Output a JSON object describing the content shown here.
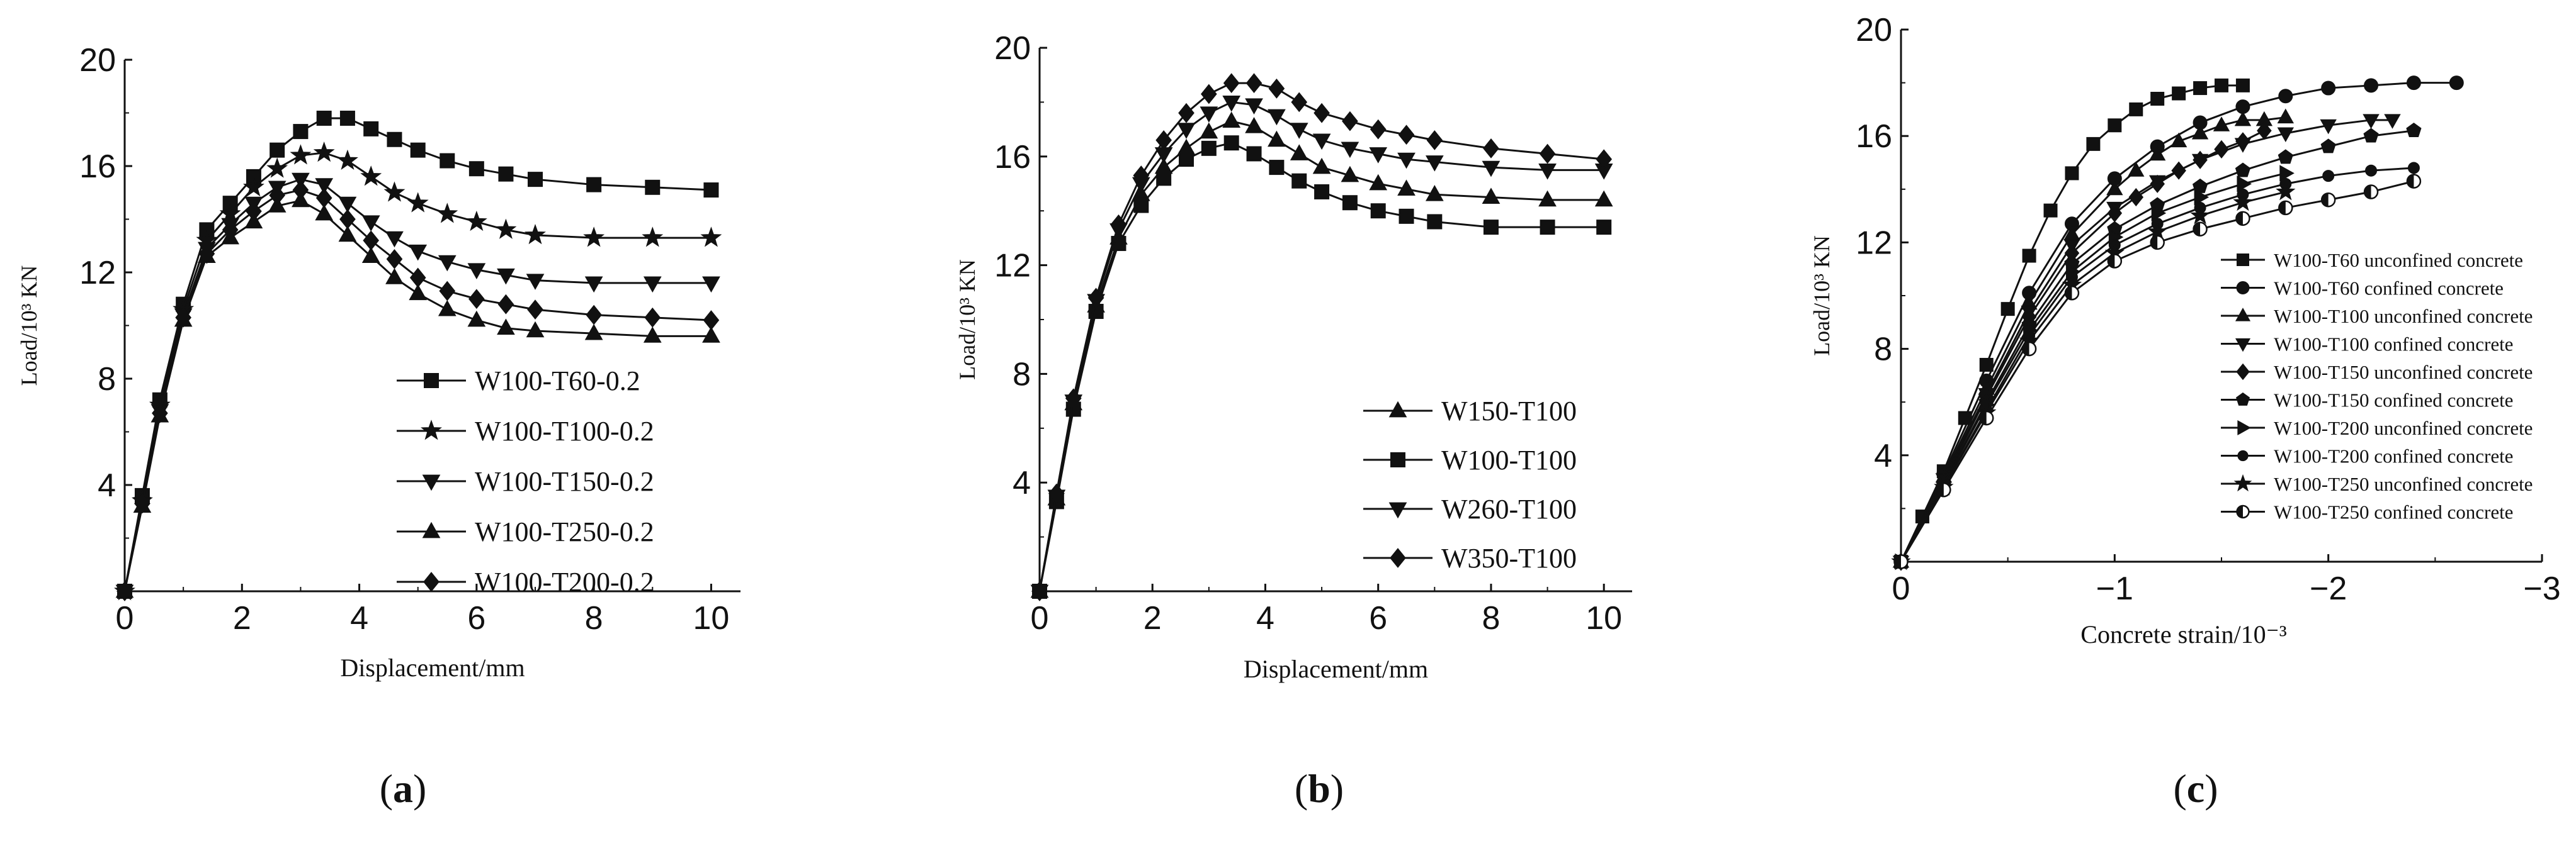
{
  "chart_data": [
    {
      "type": "line",
      "panel_label": "a",
      "xlabel": "Displacement/mm",
      "ylabel": "Load/10³ KN",
      "xlim": [
        0,
        10.5
      ],
      "ylim": [
        0,
        20
      ],
      "xticks": [
        0,
        2,
        4,
        6,
        8,
        10
      ],
      "yticks": [
        4,
        8,
        12,
        16,
        20
      ],
      "grid": false,
      "legend_position": "lower-right",
      "series": [
        {
          "name": "W100-T60-0.2",
          "marker": "square",
          "x": [
            0,
            0.3,
            0.6,
            1.0,
            1.4,
            1.8,
            2.2,
            2.6,
            3.0,
            3.4,
            3.8,
            4.2,
            4.6,
            5.0,
            5.5,
            6.0,
            6.5,
            7.0,
            8.0,
            9.0,
            10.0
          ],
          "y": [
            0,
            3.6,
            7.2,
            10.8,
            13.6,
            14.6,
            15.6,
            16.6,
            17.3,
            17.8,
            17.8,
            17.4,
            17.0,
            16.6,
            16.2,
            15.9,
            15.7,
            15.5,
            15.3,
            15.2,
            15.1
          ]
        },
        {
          "name": "W100-T100-0.2",
          "marker": "star",
          "x": [
            0,
            0.3,
            0.6,
            1.0,
            1.4,
            1.8,
            2.2,
            2.6,
            3.0,
            3.4,
            3.8,
            4.2,
            4.6,
            5.0,
            5.5,
            6.0,
            6.5,
            7.0,
            8.0,
            9.0,
            10.0
          ],
          "y": [
            0,
            3.4,
            7.0,
            10.6,
            13.2,
            14.2,
            15.2,
            15.9,
            16.4,
            16.5,
            16.2,
            15.6,
            15.0,
            14.6,
            14.2,
            13.9,
            13.6,
            13.4,
            13.3,
            13.3,
            13.3
          ]
        },
        {
          "name": "W100-T150-0.2",
          "marker": "triangle-down",
          "x": [
            0,
            0.3,
            0.6,
            1.0,
            1.4,
            1.8,
            2.2,
            2.6,
            3.0,
            3.4,
            3.8,
            4.2,
            4.6,
            5.0,
            5.5,
            6.0,
            6.5,
            7.0,
            8.0,
            9.0,
            10.0
          ],
          "y": [
            0,
            3.3,
            6.8,
            10.4,
            12.9,
            13.8,
            14.6,
            15.2,
            15.5,
            15.3,
            14.6,
            13.9,
            13.3,
            12.8,
            12.4,
            12.1,
            11.9,
            11.7,
            11.6,
            11.6,
            11.6
          ]
        },
        {
          "name": "W100-T250-0.2",
          "marker": "triangle-up",
          "x": [
            0,
            0.3,
            0.6,
            1.0,
            1.4,
            1.8,
            2.2,
            2.6,
            3.0,
            3.4,
            3.8,
            4.2,
            4.6,
            5.0,
            5.5,
            6.0,
            6.5,
            7.0,
            8.0,
            9.0,
            10.0
          ],
          "y": [
            0,
            3.2,
            6.6,
            10.2,
            12.6,
            13.3,
            13.9,
            14.5,
            14.7,
            14.2,
            13.4,
            12.6,
            11.8,
            11.2,
            10.6,
            10.2,
            9.9,
            9.8,
            9.7,
            9.6,
            9.6
          ]
        },
        {
          "name": "W100-T200-0.2",
          "marker": "diamond",
          "x": [
            0,
            0.3,
            0.6,
            1.0,
            1.4,
            1.8,
            2.2,
            2.6,
            3.0,
            3.4,
            3.8,
            4.2,
            4.6,
            5.0,
            5.5,
            6.0,
            6.5,
            7.0,
            8.0,
            9.0,
            10.0
          ],
          "y": [
            0,
            3.3,
            6.7,
            10.3,
            12.7,
            13.6,
            14.3,
            14.9,
            15.1,
            14.8,
            14.0,
            13.2,
            12.5,
            11.8,
            11.3,
            11.0,
            10.8,
            10.6,
            10.4,
            10.3,
            10.2
          ]
        }
      ]
    },
    {
      "type": "line",
      "panel_label": "b",
      "xlabel": "Displacement/mm",
      "ylabel": "Load/10³ KN",
      "xlim": [
        0,
        10.5
      ],
      "ylim": [
        0,
        20
      ],
      "xticks": [
        0,
        2,
        4,
        6,
        8,
        10
      ],
      "yticks": [
        4,
        8,
        12,
        16,
        20
      ],
      "grid": false,
      "legend_position": "lower-right",
      "series": [
        {
          "name": "W150-T100",
          "marker": "triangle-up",
          "x": [
            0,
            0.3,
            0.6,
            1.0,
            1.4,
            1.8,
            2.2,
            2.6,
            3.0,
            3.4,
            3.8,
            4.2,
            4.6,
            5.0,
            5.5,
            6.0,
            6.5,
            7.0,
            8.0,
            9.0,
            10.0
          ],
          "y": [
            0,
            3.4,
            6.9,
            10.5,
            13.0,
            14.6,
            15.6,
            16.3,
            16.9,
            17.3,
            17.1,
            16.6,
            16.1,
            15.6,
            15.3,
            15.0,
            14.8,
            14.6,
            14.5,
            14.4,
            14.4
          ]
        },
        {
          "name": "W100-T100",
          "marker": "square",
          "x": [
            0,
            0.3,
            0.6,
            1.0,
            1.4,
            1.8,
            2.2,
            2.6,
            3.0,
            3.4,
            3.8,
            4.2,
            4.6,
            5.0,
            5.5,
            6.0,
            6.5,
            7.0,
            8.0,
            9.0,
            10.0
          ],
          "y": [
            0,
            3.3,
            6.7,
            10.3,
            12.8,
            14.2,
            15.2,
            15.9,
            16.3,
            16.5,
            16.1,
            15.6,
            15.1,
            14.7,
            14.3,
            14.0,
            13.8,
            13.6,
            13.4,
            13.4,
            13.4
          ]
        },
        {
          "name": "W260-T100",
          "marker": "triangle-down",
          "x": [
            0,
            0.3,
            0.6,
            1.0,
            1.4,
            1.8,
            2.2,
            2.6,
            3.0,
            3.4,
            3.8,
            4.2,
            4.6,
            5.0,
            5.5,
            6.0,
            6.5,
            7.0,
            8.0,
            9.0,
            10.0
          ],
          "y": [
            0,
            3.5,
            7.0,
            10.7,
            13.3,
            15.0,
            16.1,
            17.0,
            17.6,
            18.0,
            17.9,
            17.5,
            17.0,
            16.6,
            16.3,
            16.1,
            15.9,
            15.8,
            15.6,
            15.5,
            15.5
          ]
        },
        {
          "name": "W350-T100",
          "marker": "diamond",
          "x": [
            0,
            0.3,
            0.6,
            1.0,
            1.4,
            1.8,
            2.2,
            2.6,
            3.0,
            3.4,
            3.8,
            4.2,
            4.6,
            5.0,
            5.5,
            6.0,
            6.5,
            7.0,
            8.0,
            9.0,
            10.0
          ],
          "y": [
            0,
            3.6,
            7.1,
            10.8,
            13.5,
            15.3,
            16.6,
            17.6,
            18.3,
            18.7,
            18.7,
            18.5,
            18.0,
            17.6,
            17.3,
            17.0,
            16.8,
            16.6,
            16.3,
            16.1,
            15.9
          ]
        }
      ]
    },
    {
      "type": "line",
      "panel_label": "c",
      "xlabel": "Concrete strain/10⁻³",
      "ylabel": "Load/10³ KN",
      "xlim": [
        0,
        -3
      ],
      "ylim": [
        0,
        20
      ],
      "xticks": [
        0,
        -1,
        -2,
        -3
      ],
      "xtick_labels": [
        "0",
        "−1",
        "−2",
        "−3"
      ],
      "yticks": [
        4,
        8,
        12,
        16,
        20
      ],
      "grid": false,
      "legend_position": "right",
      "series": [
        {
          "name": "W100-T60 unconfined concrete",
          "marker": "square",
          "x": [
            0,
            -0.1,
            -0.2,
            -0.3,
            -0.4,
            -0.5,
            -0.6,
            -0.7,
            -0.8,
            -0.9,
            -1.0,
            -1.1,
            -1.2,
            -1.3,
            -1.4,
            -1.5,
            -1.6
          ],
          "y": [
            0,
            1.7,
            3.4,
            5.4,
            7.4,
            9.5,
            11.5,
            13.2,
            14.6,
            15.7,
            16.4,
            17.0,
            17.4,
            17.6,
            17.8,
            17.9,
            17.9
          ]
        },
        {
          "name": "W100-T60 confined concrete",
          "marker": "circle",
          "x": [
            0,
            -0.2,
            -0.4,
            -0.6,
            -0.8,
            -1.0,
            -1.2,
            -1.4,
            -1.6,
            -1.8,
            -2.0,
            -2.2,
            -2.4,
            -2.6
          ],
          "y": [
            0,
            3.3,
            6.8,
            10.1,
            12.7,
            14.4,
            15.6,
            16.5,
            17.1,
            17.5,
            17.8,
            17.9,
            18.0,
            18.0
          ]
        },
        {
          "name": "W100-T100 unconfined concrete",
          "marker": "triangle-up",
          "x": [
            0,
            -0.2,
            -0.4,
            -0.6,
            -0.8,
            -1.0,
            -1.1,
            -1.2,
            -1.3,
            -1.4,
            -1.5,
            -1.6,
            -1.7,
            -1.8
          ],
          "y": [
            0,
            3.2,
            6.5,
            9.7,
            12.3,
            14.0,
            14.7,
            15.3,
            15.8,
            16.1,
            16.4,
            16.6,
            16.6,
            16.7
          ]
        },
        {
          "name": "W100-T100 confined concrete",
          "marker": "triangle-down",
          "x": [
            0,
            -0.2,
            -0.4,
            -0.6,
            -0.8,
            -1.0,
            -1.2,
            -1.4,
            -1.6,
            -1.8,
            -2.0,
            -2.2,
            -2.3
          ],
          "y": [
            0,
            3.1,
            6.3,
            9.4,
            11.9,
            13.3,
            14.3,
            15.1,
            15.7,
            16.1,
            16.4,
            16.6,
            16.6
          ]
        },
        {
          "name": "W100-T150 unconfined concrete",
          "marker": "diamond",
          "x": [
            0,
            -0.2,
            -0.4,
            -0.6,
            -0.8,
            -1.0,
            -1.1,
            -1.2,
            -1.3,
            -1.4,
            -1.5,
            -1.6,
            -1.7
          ],
          "y": [
            0,
            3.0,
            6.2,
            9.2,
            11.6,
            13.1,
            13.7,
            14.2,
            14.7,
            15.1,
            15.5,
            15.8,
            16.2
          ]
        },
        {
          "name": "W100-T150 confined concrete",
          "marker": "pentagon",
          "x": [
            0,
            -0.2,
            -0.4,
            -0.6,
            -0.8,
            -1.0,
            -1.2,
            -1.4,
            -1.6,
            -1.8,
            -2.0,
            -2.2,
            -2.4
          ],
          "y": [
            0,
            2.9,
            6.0,
            8.9,
            11.2,
            12.5,
            13.4,
            14.1,
            14.7,
            15.2,
            15.6,
            16.0,
            16.2
          ]
        },
        {
          "name": "W100-T200 unconfined concrete",
          "marker": "triangle-right",
          "x": [
            0,
            -0.2,
            -0.4,
            -0.6,
            -0.8,
            -1.0,
            -1.2,
            -1.4,
            -1.6,
            -1.8
          ],
          "y": [
            0,
            2.9,
            5.9,
            8.7,
            10.9,
            12.2,
            13.1,
            13.7,
            14.2,
            14.6
          ]
        },
        {
          "name": "W100-T200 confined concrete",
          "marker": "circle-small",
          "x": [
            0,
            -0.2,
            -0.4,
            -0.6,
            -0.8,
            -1.0,
            -1.2,
            -1.4,
            -1.6,
            -1.8,
            -2.0,
            -2.2,
            -2.4
          ],
          "y": [
            0,
            2.8,
            5.7,
            8.5,
            10.7,
            11.9,
            12.7,
            13.3,
            13.8,
            14.2,
            14.5,
            14.7,
            14.8
          ]
        },
        {
          "name": "W100-T250 unconfined concrete",
          "marker": "star",
          "x": [
            0,
            -0.2,
            -0.4,
            -0.6,
            -0.8,
            -1.0,
            -1.2,
            -1.4,
            -1.6,
            -1.8
          ],
          "y": [
            0,
            2.8,
            5.6,
            8.3,
            10.4,
            11.6,
            12.4,
            13.0,
            13.5,
            13.9
          ]
        },
        {
          "name": "W100-T250 confined concrete",
          "marker": "half-circle",
          "x": [
            0,
            -0.2,
            -0.4,
            -0.6,
            -0.8,
            -1.0,
            -1.2,
            -1.4,
            -1.6,
            -1.8,
            -2.0,
            -2.2,
            -2.4
          ],
          "y": [
            0,
            2.7,
            5.4,
            8.0,
            10.1,
            11.3,
            12.0,
            12.5,
            12.9,
            13.3,
            13.6,
            13.9,
            14.3
          ]
        }
      ]
    }
  ]
}
